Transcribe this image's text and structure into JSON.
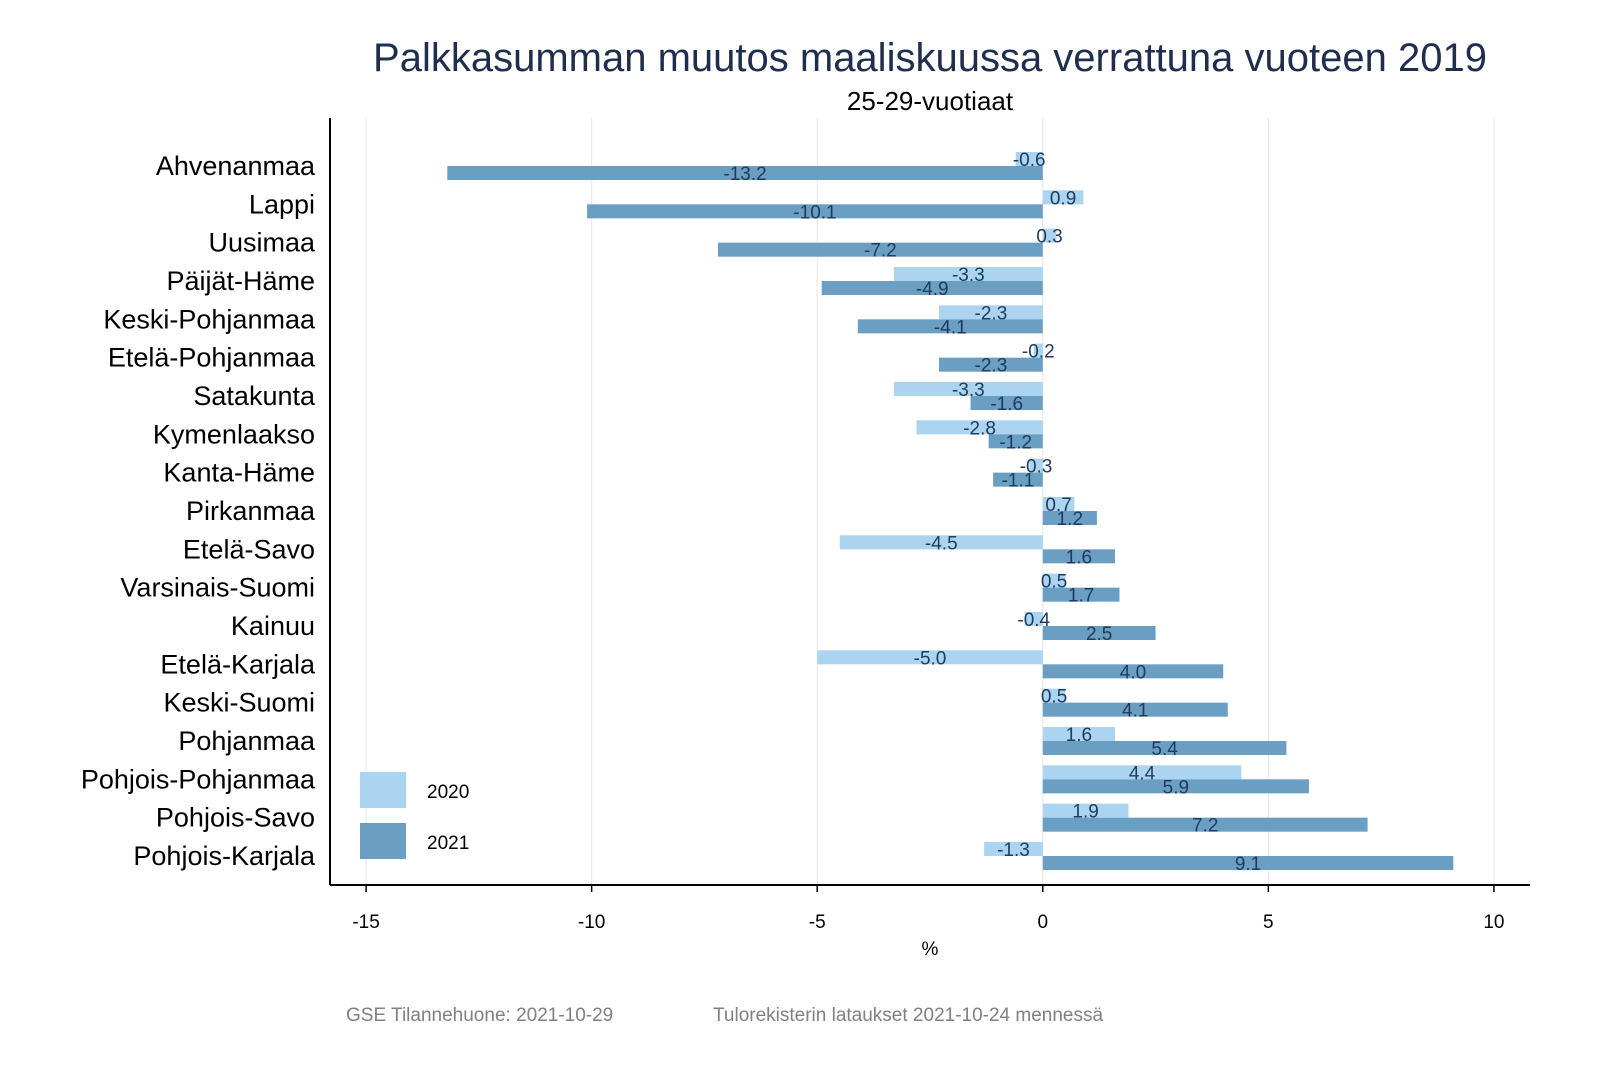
{
  "chart_data": {
    "type": "bar",
    "orientation": "horizontal",
    "title": "Palkkasumman muutos maaliskuussa verrattuna vuoteen 2019",
    "subtitle": "25-29-vuotiaat",
    "xlabel": "%",
    "ylabel": "",
    "xlim": [
      -15.8,
      10.8
    ],
    "xticks": [
      -15,
      -10,
      -5,
      0,
      5,
      10
    ],
    "grid": true,
    "legend_position": "bottom-left",
    "categories": [
      "Ahvenanmaa",
      "Lappi",
      "Uusimaa",
      "Päijät-Häme",
      "Keski-Pohjanmaa",
      "Etelä-Pohjanmaa",
      "Satakunta",
      "Kymenlaakso",
      "Kanta-Häme",
      "Pirkanmaa",
      "Etelä-Savo",
      "Varsinais-Suomi",
      "Kainuu",
      "Etelä-Karjala",
      "Keski-Suomi",
      "Pohjanmaa",
      "Pohjois-Pohjanmaa",
      "Pohjois-Savo",
      "Pohjois-Karjala"
    ],
    "series": [
      {
        "name": "2020",
        "color": "#abd4f0",
        "values": [
          -0.6,
          0.9,
          0.3,
          -3.3,
          -2.3,
          -0.2,
          -3.3,
          -2.8,
          -0.3,
          0.7,
          -4.5,
          0.5,
          -0.4,
          -5.0,
          0.5,
          1.6,
          4.4,
          1.9,
          -1.3
        ],
        "labels": [
          "-0.6",
          "0.9",
          "0.3",
          "-3.3",
          "-2.3",
          "-0.2",
          "-3.3",
          "-2.8",
          "-0.3",
          "0.7",
          "-4.5",
          "0.5",
          "-0.4",
          "-5.0",
          "0.5",
          "1.6",
          "4.4",
          "1.9",
          "-1.3"
        ]
      },
      {
        "name": "2021",
        "color": "#6a9ec3",
        "values": [
          -13.2,
          -10.1,
          -7.2,
          -4.9,
          -4.1,
          -2.3,
          -1.6,
          -1.2,
          -1.1,
          1.2,
          1.6,
          1.7,
          2.5,
          4.0,
          4.1,
          5.4,
          5.9,
          7.2,
          9.1
        ],
        "labels": [
          "-13.2",
          "-10.1",
          "-7.2",
          "-4.9",
          "-4.1",
          "-2.3",
          "-1.6",
          "-1.2",
          "-1.1",
          "1.2",
          "1.6",
          "1.7",
          "2.5",
          "4.0",
          "4.1",
          "5.4",
          "5.9",
          "7.2",
          "9.1"
        ]
      }
    ],
    "label_color": "#1f3b5c"
  },
  "footer": {
    "source": "GSE Tilannehuone: 2021-10-29",
    "note": "Tulorekisterin lataukset 2021-10-24 mennessä"
  }
}
